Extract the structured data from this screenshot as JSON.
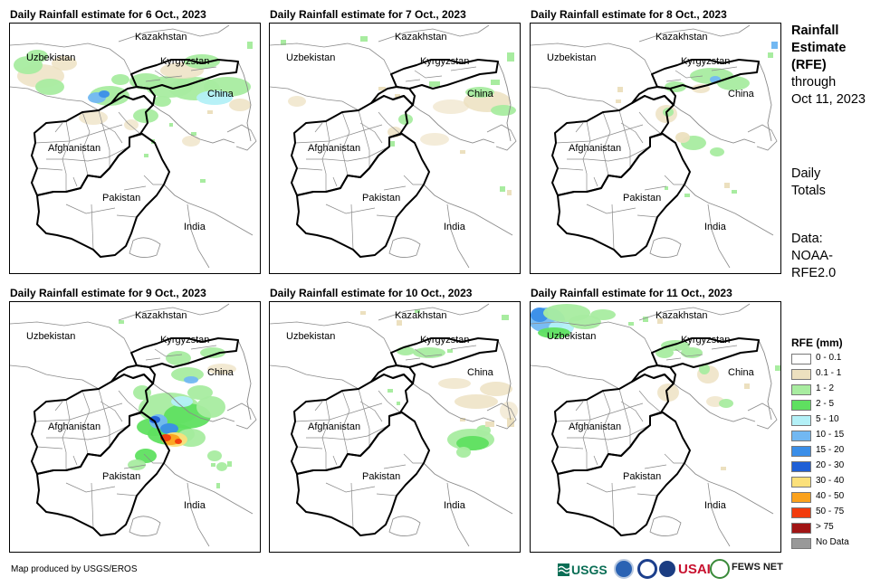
{
  "panels": [
    {
      "title": "Daily Rainfall estimate for 6 Oct., 2023"
    },
    {
      "title": "Daily Rainfall estimate for 7 Oct., 2023"
    },
    {
      "title": "Daily Rainfall estimate for 8 Oct., 2023"
    },
    {
      "title": "Daily Rainfall estimate for 9 Oct., 2023"
    },
    {
      "title": "Daily Rainfall estimate for 10 Oct., 2023"
    },
    {
      "title": "Daily Rainfall estimate for 11 Oct., 2023"
    }
  ],
  "map_labels": {
    "kazakhstan": "Kazakhstan",
    "uzbekistan": "Uzbekistan",
    "kyrgyzstan": "Kyrgyzstan",
    "china": "China",
    "afghanistan": "Afghanistan",
    "pakistan": "Pakistan",
    "india": "India"
  },
  "sidebar": {
    "title_lines": [
      "Rainfall",
      "Estimate",
      "(RFE)"
    ],
    "through_lines": [
      "through",
      "Oct 11, 2023"
    ],
    "daily_lines": [
      "Daily",
      "Totals"
    ],
    "data_lines": [
      "Data:",
      "NOAA-",
      "RFE2.0"
    ]
  },
  "legend": {
    "title": "RFE (mm)",
    "items": [
      {
        "label": "0 - 0.1",
        "color": "#ffffff"
      },
      {
        "label": "0.1 - 1",
        "color": "#ece0bf"
      },
      {
        "label": "1 - 2",
        "color": "#a8eca0"
      },
      {
        "label": "2 - 5",
        "color": "#5fe060"
      },
      {
        "label": "5 - 10",
        "color": "#b3f0f7"
      },
      {
        "label": "10 - 15",
        "color": "#72b8f2"
      },
      {
        "label": "15 - 20",
        "color": "#3a8ee8"
      },
      {
        "label": "20 - 30",
        "color": "#1f5fd6"
      },
      {
        "label": "30 - 40",
        "color": "#fbe07a"
      },
      {
        "label": "40 - 50",
        "color": "#fba21c"
      },
      {
        "label": "50 - 75",
        "color": "#f23b0c"
      },
      {
        "label": "> 75",
        "color": "#a11414"
      },
      {
        "label": "No Data",
        "color": "#999999"
      }
    ]
  },
  "credit": "Map produced by USGS/EROS",
  "logos": {
    "usgs": "USGS",
    "usaid": "USAID",
    "fewsnet": "FEWS NET"
  }
}
